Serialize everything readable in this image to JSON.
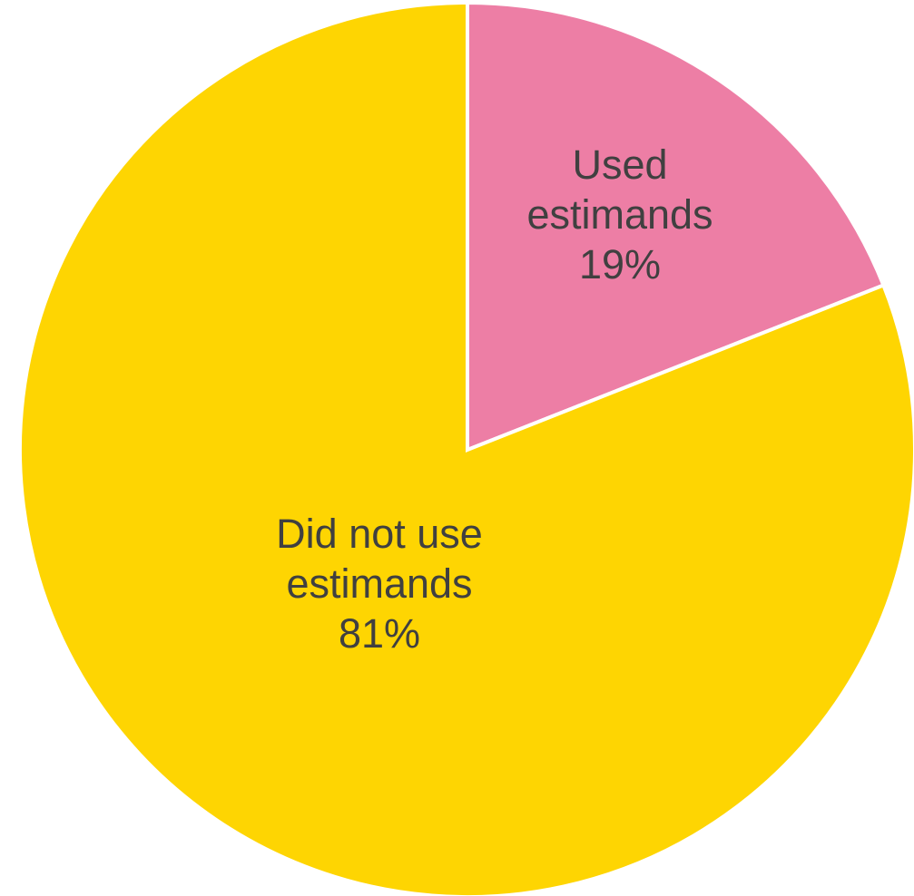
{
  "chart_data": {
    "type": "pie",
    "slices": [
      {
        "label_lines": [
          "Used",
          "estimands"
        ],
        "percent_label": "19%",
        "value": 19,
        "color": "#ed7ea5"
      },
      {
        "label_lines": [
          "Did not use",
          "estimands"
        ],
        "percent_label": "81%",
        "value": 81,
        "color": "#fed502"
      }
    ],
    "start_angle_deg": 0,
    "direction": "clockwise"
  }
}
